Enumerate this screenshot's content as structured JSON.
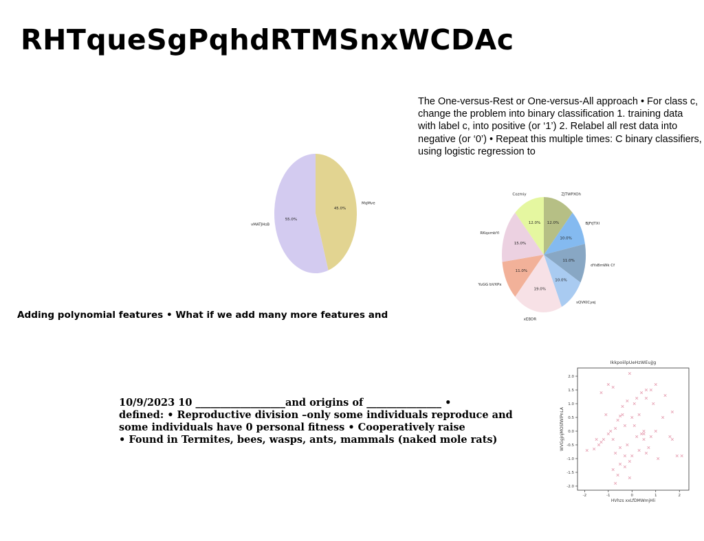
{
  "slide": {
    "title": "RHTqueSgPqhdRTMSnxWCDAc",
    "paragraph": "The One-versus-Rest or One-versus-All approach • For class c, change the problem into binary classification 1. training data with label c, into positive (or ‘1’) 2. Relabel all rest data into negative (or ‘0’) • Repeat this multiple times: C binary classifiers, using logistic regression to",
    "caption": "Adding polynomial features • What if we add many more features and",
    "bio_lines": [
      "10/9/2023 10 __________________and origins of _______________ •",
      "defined: • Reproductive division –only some individuals reproduce and",
      "some individuals have 0 personal fitness • Cooperatively raise",
      "• Found in Termites, bees, wasps, ants, mammals (naked mole rats)"
    ]
  },
  "chart_data": [
    {
      "type": "pie",
      "title": "",
      "labels": [
        "MqMve",
        "vMATJHsB"
      ],
      "values": [
        45.0,
        55.0
      ],
      "value_labels": [
        "45.0%",
        "55.0%"
      ],
      "colors": [
        "#e2d491",
        "#d3cbf0"
      ],
      "start": "top",
      "direction": "clockwise"
    },
    {
      "type": "pie",
      "title": "",
      "labels": [
        "ZJTWPXOh",
        "BJFrJTXl",
        "dYsBmWk Cf",
        "sQVKICyej",
        "xEBDR",
        "YuGG bVXPx",
        "RKqxmbYi",
        "Cozmiy"
      ],
      "values": [
        12.0,
        10.0,
        11.0,
        10.0,
        19.0,
        11.0,
        15.0,
        12.0
      ],
      "value_labels": [
        "12.0%",
        "10.0%",
        "11.0%",
        "10.0%",
        "19.0%",
        "11.0%",
        "15.0%",
        "12.0%"
      ],
      "colors": [
        "#b6bf85",
        "#84baf0",
        "#88a7c4",
        "#a9cbf1",
        "#f7e1e6",
        "#f2b199",
        "#ecd1e1",
        "#e5f7a0"
      ],
      "start": "top",
      "direction": "clockwise"
    },
    {
      "type": "scatter",
      "title": "IkkpoiilpUeHzWEujJg",
      "xlabel": "HVhzs xxLfDMWmjHli",
      "ylabel": "WVGgjnjMOSfWlPnLA",
      "xlim": [
        -2.3,
        2.4
      ],
      "ylim": [
        -2.15,
        2.3
      ],
      "xticks": [
        -2,
        -1,
        0,
        1,
        2
      ],
      "yticks": [
        -2.0,
        -1.5,
        -1.0,
        -0.5,
        0.0,
        0.5,
        1.0,
        1.5,
        2.0
      ],
      "grid": false,
      "marker": "x",
      "color": "#e7a3b5",
      "series": [
        {
          "x": [
            -0.1,
            -1.0,
            -0.8,
            -1.3,
            0.2,
            0.8,
            1.0,
            0.6,
            0.4,
            1.4,
            0.9,
            -0.4,
            0.1,
            -0.2,
            0.6,
            0.3,
            1.7,
            1.3,
            -1.1,
            -0.5,
            -0.6,
            -0.4,
            0.0,
            -0.3,
            0.1,
            0.5,
            1.0,
            1.6,
            -0.9,
            -0.7,
            -1.0,
            -1.2,
            -1.5,
            -1.3,
            -1.4,
            -0.8,
            0.8,
            0.2,
            0.4,
            0.5,
            1.7,
            1.9,
            2.1,
            -1.9,
            -1.6,
            -0.5,
            0.3,
            0.6,
            0.7,
            -0.2,
            -0.7,
            -0.3,
            0.0,
            -0.1,
            -0.5,
            1.1,
            -0.8,
            -0.3,
            -0.6,
            -0.1,
            -0.7,
            0.5
          ],
          "y": [
            2.1,
            1.7,
            1.6,
            1.4,
            1.2,
            1.5,
            1.7,
            1.5,
            1.4,
            1.3,
            1.0,
            0.9,
            1.0,
            1.1,
            1.2,
            0.6,
            0.7,
            0.5,
            0.6,
            0.55,
            0.4,
            0.6,
            0.5,
            0.2,
            0.2,
            0.0,
            0.0,
            -0.2,
            0.0,
            0.1,
            -0.1,
            -0.3,
            -0.3,
            -0.4,
            -0.5,
            -0.3,
            -0.2,
            -0.2,
            -0.1,
            -0.1,
            -0.3,
            -0.9,
            -0.9,
            -0.7,
            -0.65,
            -0.6,
            -0.7,
            -0.8,
            -0.6,
            -0.5,
            -0.8,
            -0.9,
            -0.9,
            -1.1,
            -1.2,
            -1.0,
            -1.4,
            -1.3,
            -1.6,
            -1.7,
            -1.9,
            -0.3
          ]
        }
      ]
    }
  ]
}
